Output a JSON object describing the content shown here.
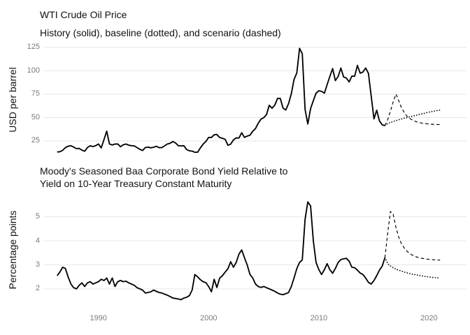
{
  "figure": {
    "background_color": "#ffffff",
    "gridline_color": "#e6e6e6",
    "line_color": "#000000",
    "tick_label_color": "#7a7a7a",
    "title_color": "#111111"
  },
  "chart_data": [
    {
      "type": "line",
      "title": "WTI Crude Oil Price",
      "subtitle": "History (solid), baseline (dotted), and scenario (dashed)",
      "ylabel": "USD per barrel",
      "xlabel": "",
      "grid": "horizontal-only",
      "legend": "none",
      "xlim": [
        1985.0,
        2023.4
      ],
      "ylim": [
        5.6,
        130.9
      ],
      "yticks": [
        25,
        50,
        75,
        100,
        125
      ],
      "xticks": [
        1990,
        2000,
        2010,
        2020
      ],
      "series": [
        {
          "name": "History",
          "style": "solid",
          "x_start": 1986.25,
          "x_step": 0.25,
          "values": [
            13.3,
            13.5,
            15.0,
            17.9,
            19.4,
            19.9,
            18.5,
            16.8,
            17.1,
            15.2,
            14.0,
            18.0,
            19.9,
            19.0,
            20.0,
            21.8,
            17.6,
            26.5,
            35.5,
            21.8,
            20.7,
            21.7,
            21.8,
            18.9,
            21.0,
            21.7,
            20.5,
            19.9,
            19.8,
            17.9,
            16.1,
            14.8,
            17.9,
            18.4,
            17.7,
            18.3,
            19.3,
            17.8,
            18.0,
            19.8,
            21.7,
            22.5,
            24.4,
            22.8,
            19.9,
            19.8,
            19.9,
            15.9,
            14.5,
            14.2,
            12.9,
            13.0,
            17.6,
            21.7,
            24.5,
            28.8,
            28.8,
            31.6,
            31.9,
            28.7,
            27.9,
            26.7,
            20.4,
            21.6,
            26.2,
            28.3,
            28.2,
            33.8,
            28.9,
            30.2,
            31.2,
            35.3,
            38.3,
            43.9,
            48.3,
            49.9,
            53.1,
            63.2,
            60.0,
            63.3,
            70.4,
            70.5,
            60.1,
            58.1,
            65.0,
            75.4,
            90.7,
            97.8,
            124.0,
            118.2,
            58.7,
            43.1,
            59.6,
            68.1,
            76.1,
            78.7,
            78.0,
            76.1,
            85.1,
            94.0,
            102.3,
            89.5,
            94.0,
            102.9,
            93.4,
            92.2,
            88.1,
            94.3,
            94.2,
            105.8,
            97.4,
            98.7,
            103.0,
            97.2,
            73.2,
            48.6,
            57.9,
            46.5,
            42.2,
            41.5
          ]
        },
        {
          "name": "Baseline",
          "style": "dotted",
          "x_start": 2016.0,
          "x_step": 0.25,
          "values": [
            41.5,
            43.5,
            44.8,
            45.8,
            46.8,
            47.7,
            48.5,
            49.3,
            50.0,
            50.8,
            51.5,
            52.2,
            53.0,
            53.7,
            54.4,
            55.1,
            55.8,
            56.4,
            57.0,
            57.5,
            58.0
          ]
        },
        {
          "name": "Scenario",
          "style": "dashed",
          "x_start": 2016.0,
          "x_step": 0.25,
          "values": [
            41.5,
            48.0,
            57.0,
            67.0,
            75.0,
            68.0,
            60.5,
            55.5,
            51.5,
            49.0,
            47.3,
            46.0,
            45.0,
            44.3,
            43.8,
            43.4,
            43.1,
            42.9,
            42.7,
            42.6,
            42.5
          ]
        }
      ]
    },
    {
      "type": "line",
      "title": "Moody's Seasoned Baa Corporate Bond Yield Relative to Yield on 10-Year Treasury Constant Maturity",
      "title_lines": [
        "Moody's Seasoned Baa Corporate Bond Yield Relative to",
        "Yield on 10-Year Treasury Constant Maturity"
      ],
      "ylabel": "Percentage points",
      "xlabel": "",
      "grid": "horizontal-only",
      "legend": "none",
      "xlim": [
        1985.0,
        2023.4
      ],
      "ylim": [
        1.33,
        5.86
      ],
      "yticks": [
        2,
        3,
        4,
        5
      ],
      "xticks": [
        1990,
        2000,
        2010,
        2020
      ],
      "series": [
        {
          "name": "History",
          "style": "solid",
          "x_start": 1986.25,
          "x_step": 0.25,
          "values": [
            2.55,
            2.7,
            2.9,
            2.85,
            2.5,
            2.2,
            2.05,
            2.0,
            2.15,
            2.25,
            2.1,
            2.25,
            2.3,
            2.2,
            2.25,
            2.3,
            2.4,
            2.35,
            2.45,
            2.2,
            2.45,
            2.1,
            2.3,
            2.35,
            2.3,
            2.32,
            2.25,
            2.2,
            2.15,
            2.05,
            2.0,
            1.95,
            1.83,
            1.85,
            1.88,
            1.95,
            1.9,
            1.85,
            1.83,
            1.78,
            1.74,
            1.68,
            1.62,
            1.6,
            1.58,
            1.55,
            1.62,
            1.65,
            1.72,
            1.95,
            2.6,
            2.5,
            2.38,
            2.3,
            2.26,
            2.1,
            1.88,
            2.4,
            2.06,
            2.45,
            2.55,
            2.7,
            2.84,
            3.13,
            2.9,
            3.1,
            3.45,
            3.62,
            3.3,
            2.99,
            2.6,
            2.46,
            2.2,
            2.1,
            2.06,
            2.1,
            2.05,
            2.0,
            1.95,
            1.9,
            1.83,
            1.78,
            1.76,
            1.8,
            1.85,
            2.1,
            2.45,
            2.85,
            3.1,
            3.2,
            4.9,
            5.62,
            5.45,
            4.0,
            3.1,
            2.8,
            2.6,
            2.8,
            3.05,
            2.8,
            2.65,
            2.85,
            3.1,
            3.22,
            3.25,
            3.27,
            3.15,
            2.9,
            2.88,
            2.78,
            2.66,
            2.6,
            2.45,
            2.27,
            2.2,
            2.35,
            2.55,
            2.78,
            2.95,
            3.3
          ]
        },
        {
          "name": "Baseline",
          "style": "dotted",
          "x_start": 2016.0,
          "x_step": 0.25,
          "values": [
            3.3,
            3.05,
            2.95,
            2.88,
            2.82,
            2.78,
            2.74,
            2.7,
            2.67,
            2.64,
            2.61,
            2.59,
            2.57,
            2.55,
            2.53,
            2.51,
            2.5,
            2.48,
            2.47,
            2.46,
            2.45
          ]
        },
        {
          "name": "Scenario",
          "style": "dashed",
          "x_start": 2016.0,
          "x_step": 0.25,
          "values": [
            3.3,
            4.35,
            5.22,
            5.1,
            4.55,
            4.15,
            3.88,
            3.7,
            3.57,
            3.47,
            3.4,
            3.35,
            3.31,
            3.28,
            3.26,
            3.24,
            3.23,
            3.22,
            3.21,
            3.2,
            3.2
          ]
        }
      ]
    }
  ]
}
